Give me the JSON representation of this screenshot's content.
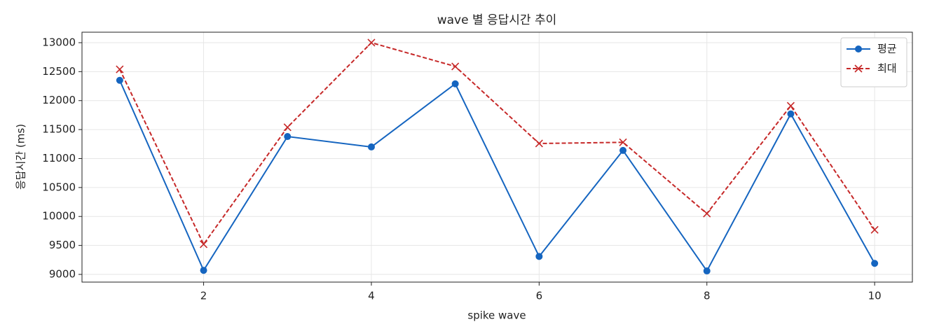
{
  "chart_data": {
    "type": "line",
    "title": "wave 별 응답시간 추이",
    "x_label": "spike wave",
    "y_label": "응답시간 (ms)",
    "x": [
      1,
      2,
      3,
      4,
      5,
      6,
      7,
      8,
      9,
      10
    ],
    "series": [
      {
        "name": "평균",
        "color": "#1565c0",
        "marker": "o",
        "dashed": false,
        "values": [
          12350,
          9070,
          11380,
          11200,
          12290,
          9310,
          11140,
          9060,
          11770,
          9190
        ]
      },
      {
        "name": "최대",
        "color": "#c62828",
        "marker": "x",
        "dashed": true,
        "values": [
          12540,
          9520,
          11540,
          13000,
          12590,
          11260,
          11280,
          10050,
          11910,
          9770
        ]
      }
    ],
    "xlim": [
      0.55,
      10.45
    ],
    "ylim": [
      8867,
      13181
    ],
    "xticks": [
      2,
      4,
      6,
      8,
      10
    ],
    "yticks": [
      9000,
      9500,
      10000,
      10500,
      11000,
      11500,
      12000,
      12500,
      13000
    ],
    "grid": true,
    "legend": "upper right"
  }
}
